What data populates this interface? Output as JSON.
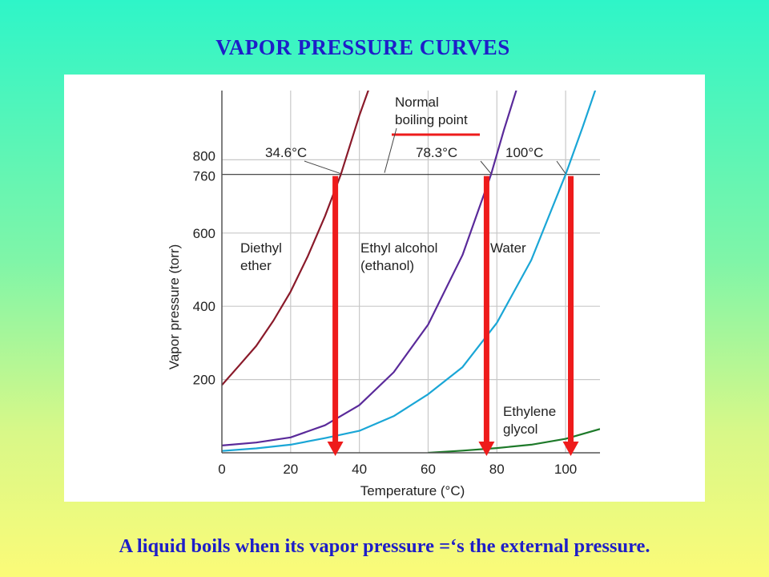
{
  "slide": {
    "title": "VAPOR PRESSURE CURVES",
    "caption": "A liquid boils when its vapor pressure =‘s the external pressure."
  },
  "chart_data": {
    "type": "line",
    "xlabel": "Temperature (°C)",
    "ylabel": "Vapor pressure (torr)",
    "xlim": [
      0,
      110
    ],
    "ylim": [
      0,
      1000
    ],
    "x_ticks": [
      0,
      20,
      40,
      60,
      80,
      100
    ],
    "y_ticks": [
      200,
      400,
      600,
      760,
      800
    ],
    "grid": true,
    "external_pressure_line": 760,
    "series": [
      {
        "name": "Diethyl\nether",
        "color": "#8a1a2a",
        "points": [
          [
            0,
            185
          ],
          [
            5,
            238
          ],
          [
            10,
            292
          ],
          [
            15,
            361
          ],
          [
            20,
            440
          ],
          [
            25,
            537
          ],
          [
            30,
            646
          ],
          [
            34.6,
            760
          ],
          [
            40,
            921
          ],
          [
            43,
            1000
          ]
        ]
      },
      {
        "name": "Ethyl alcohol\n(ethanol)",
        "color": "#5a2a9a",
        "points": [
          [
            0,
            20
          ],
          [
            10,
            28
          ],
          [
            20,
            42
          ],
          [
            30,
            75
          ],
          [
            40,
            130
          ],
          [
            50,
            220
          ],
          [
            60,
            350
          ],
          [
            70,
            540
          ],
          [
            78.3,
            760
          ],
          [
            82,
            880
          ],
          [
            86,
            1000
          ]
        ]
      },
      {
        "name": "Water",
        "color": "#1aa6d6",
        "points": [
          [
            0,
            5
          ],
          [
            10,
            12
          ],
          [
            20,
            22
          ],
          [
            30,
            40
          ],
          [
            40,
            60
          ],
          [
            50,
            100
          ],
          [
            60,
            160
          ],
          [
            70,
            234
          ],
          [
            80,
            355
          ],
          [
            90,
            526
          ],
          [
            100,
            760
          ],
          [
            105,
            890
          ],
          [
            109,
            1000
          ]
        ]
      },
      {
        "name": "Ethylene\nglycol",
        "color": "#1e7a2a",
        "points": [
          [
            60,
            0
          ],
          [
            70,
            6
          ],
          [
            80,
            13
          ],
          [
            90,
            22
          ],
          [
            100,
            38
          ],
          [
            110,
            65
          ]
        ]
      }
    ],
    "annotations": {
      "normal_boiling_point": "Normal\nboiling point",
      "boiling_points": [
        {
          "label": "34.6°C",
          "x": 34.6,
          "y": 760
        },
        {
          "label": "78.3°C",
          "x": 78.3,
          "y": 760
        },
        {
          "label": "100°C",
          "x": 100,
          "y": 760
        }
      ]
    },
    "arrows": {
      "color": "#ee1b1b",
      "positions_x": [
        33,
        77,
        101.5
      ]
    }
  }
}
